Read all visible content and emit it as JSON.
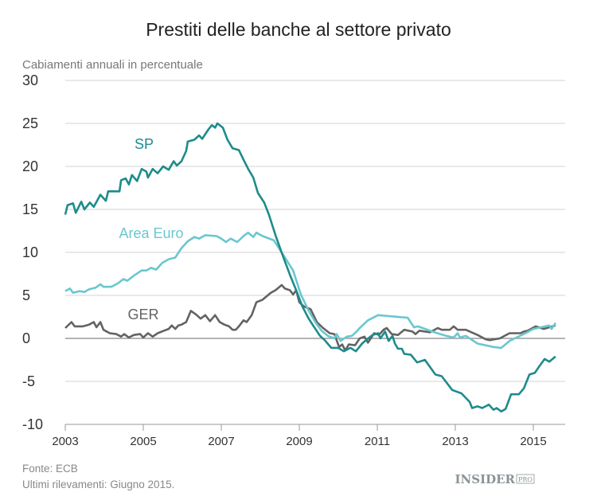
{
  "chart_data": {
    "type": "line",
    "title": "Prestiti delle banche al settore privato",
    "subtitle": "Cabiamenti annuali in percentuale",
    "xlabel": "",
    "ylabel": "",
    "xlim": [
      2003,
      2016
    ],
    "ylim": [
      -10,
      30
    ],
    "yticks": [
      "30",
      "25",
      "20",
      "15",
      "10",
      "5",
      "0",
      "-5",
      "-10"
    ],
    "xticks": [
      "2003",
      "2005",
      "2007",
      "2009",
      "2011",
      "2013",
      "2015"
    ],
    "grid": "horizontal",
    "legend": "inline labels",
    "series": [
      {
        "name": "SP",
        "color": "#1e8b8c",
        "points": [
          [
            2003.0,
            14.4
          ],
          [
            2003.06,
            15.5
          ],
          [
            2003.2,
            15.7
          ],
          [
            2003.27,
            14.6
          ],
          [
            2003.41,
            15.9
          ],
          [
            2003.49,
            15.0
          ],
          [
            2003.63,
            15.8
          ],
          [
            2003.73,
            15.3
          ],
          [
            2003.9,
            16.7
          ],
          [
            2004.04,
            16.0
          ],
          [
            2004.1,
            17.1
          ],
          [
            2004.39,
            17.1
          ],
          [
            2004.43,
            18.4
          ],
          [
            2004.55,
            18.6
          ],
          [
            2004.63,
            17.9
          ],
          [
            2004.71,
            19.0
          ],
          [
            2004.84,
            18.3
          ],
          [
            2004.96,
            19.7
          ],
          [
            2005.08,
            19.4
          ],
          [
            2005.12,
            18.7
          ],
          [
            2005.24,
            19.7
          ],
          [
            2005.37,
            19.2
          ],
          [
            2005.51,
            20.0
          ],
          [
            2005.65,
            19.6
          ],
          [
            2005.78,
            20.6
          ],
          [
            2005.86,
            20.1
          ],
          [
            2005.98,
            20.6
          ],
          [
            2006.1,
            21.8
          ],
          [
            2006.14,
            22.9
          ],
          [
            2006.31,
            23.1
          ],
          [
            2006.43,
            23.6
          ],
          [
            2006.51,
            23.2
          ],
          [
            2006.67,
            24.3
          ],
          [
            2006.76,
            24.8
          ],
          [
            2006.84,
            24.5
          ],
          [
            2006.9,
            25.0
          ],
          [
            2007.04,
            24.5
          ],
          [
            2007.16,
            23.1
          ],
          [
            2007.29,
            22.1
          ],
          [
            2007.45,
            21.9
          ],
          [
            2007.57,
            20.8
          ],
          [
            2007.69,
            19.7
          ],
          [
            2007.82,
            18.7
          ],
          [
            2007.94,
            16.9
          ],
          [
            2008.1,
            15.8
          ],
          [
            2008.22,
            14.4
          ],
          [
            2008.39,
            12.0
          ],
          [
            2008.57,
            9.7
          ],
          [
            2008.76,
            7.4
          ],
          [
            2008.92,
            5.6
          ],
          [
            2009.08,
            3.7
          ],
          [
            2009.24,
            2.3
          ],
          [
            2009.37,
            1.4
          ],
          [
            2009.53,
            0.3
          ],
          [
            2009.65,
            -0.2
          ],
          [
            2009.82,
            -1.1
          ],
          [
            2010.0,
            -1.1
          ],
          [
            2010.14,
            -1.5
          ],
          [
            2010.31,
            -1.1
          ],
          [
            2010.45,
            -1.5
          ],
          [
            2010.61,
            -0.6
          ],
          [
            2010.71,
            -0.2
          ],
          [
            2010.88,
            0.4
          ],
          [
            2011.02,
            0.6
          ],
          [
            2011.08,
            0.0
          ],
          [
            2011.2,
            0.8
          ],
          [
            2011.29,
            -0.3
          ],
          [
            2011.39,
            0.3
          ],
          [
            2011.45,
            -0.6
          ],
          [
            2011.53,
            -1.2
          ],
          [
            2011.63,
            -1.2
          ],
          [
            2011.69,
            -1.8
          ],
          [
            2011.86,
            -1.9
          ],
          [
            2012.02,
            -2.8
          ],
          [
            2012.22,
            -2.5
          ],
          [
            2012.49,
            -4.2
          ],
          [
            2012.65,
            -4.4
          ],
          [
            2012.92,
            -6.0
          ],
          [
            2013.16,
            -6.4
          ],
          [
            2013.37,
            -7.4
          ],
          [
            2013.43,
            -8.1
          ],
          [
            2013.57,
            -7.9
          ],
          [
            2013.69,
            -8.1
          ],
          [
            2013.86,
            -7.7
          ],
          [
            2013.98,
            -8.3
          ],
          [
            2014.06,
            -8.1
          ],
          [
            2014.18,
            -8.5
          ],
          [
            2014.29,
            -8.2
          ],
          [
            2014.43,
            -6.5
          ],
          [
            2014.63,
            -6.5
          ],
          [
            2014.76,
            -5.8
          ],
          [
            2014.9,
            -4.2
          ],
          [
            2015.04,
            -4.0
          ],
          [
            2015.16,
            -3.2
          ],
          [
            2015.29,
            -2.4
          ],
          [
            2015.41,
            -2.7
          ],
          [
            2015.57,
            -2.1
          ]
        ]
      },
      {
        "name": "Area Euro",
        "color": "#6ac7cf",
        "points": [
          [
            2003.0,
            5.5
          ],
          [
            2003.12,
            5.8
          ],
          [
            2003.2,
            5.3
          ],
          [
            2003.37,
            5.5
          ],
          [
            2003.49,
            5.4
          ],
          [
            2003.61,
            5.7
          ],
          [
            2003.78,
            5.9
          ],
          [
            2003.9,
            6.3
          ],
          [
            2003.98,
            6.0
          ],
          [
            2004.18,
            6.0
          ],
          [
            2004.35,
            6.4
          ],
          [
            2004.49,
            6.9
          ],
          [
            2004.59,
            6.7
          ],
          [
            2004.76,
            7.3
          ],
          [
            2004.96,
            7.9
          ],
          [
            2005.08,
            7.9
          ],
          [
            2005.2,
            8.2
          ],
          [
            2005.33,
            8.0
          ],
          [
            2005.49,
            8.8
          ],
          [
            2005.65,
            9.2
          ],
          [
            2005.82,
            9.4
          ],
          [
            2005.98,
            10.5
          ],
          [
            2006.14,
            11.3
          ],
          [
            2006.31,
            11.8
          ],
          [
            2006.43,
            11.6
          ],
          [
            2006.59,
            12.0
          ],
          [
            2006.88,
            11.9
          ],
          [
            2007.0,
            11.6
          ],
          [
            2007.12,
            11.2
          ],
          [
            2007.24,
            11.6
          ],
          [
            2007.41,
            11.2
          ],
          [
            2007.57,
            11.9
          ],
          [
            2007.69,
            12.3
          ],
          [
            2007.82,
            11.8
          ],
          [
            2007.9,
            12.3
          ],
          [
            2008.06,
            11.9
          ],
          [
            2008.35,
            11.4
          ],
          [
            2008.59,
            9.7
          ],
          [
            2008.84,
            7.9
          ],
          [
            2009.04,
            5.1
          ],
          [
            2009.24,
            3.2
          ],
          [
            2009.41,
            1.9
          ],
          [
            2009.57,
            0.9
          ],
          [
            2009.73,
            0.3
          ],
          [
            2009.9,
            0.0
          ],
          [
            2009.96,
            0.5
          ],
          [
            2010.06,
            -0.3
          ],
          [
            2010.22,
            0.2
          ],
          [
            2010.35,
            0.3
          ],
          [
            2010.47,
            0.8
          ],
          [
            2010.55,
            1.2
          ],
          [
            2010.76,
            2.1
          ],
          [
            2011.02,
            2.7
          ],
          [
            2011.78,
            2.4
          ],
          [
            2011.94,
            1.3
          ],
          [
            2012.04,
            1.4
          ],
          [
            2012.47,
            0.7
          ],
          [
            2012.76,
            0.3
          ],
          [
            2012.96,
            0.1
          ],
          [
            2013.06,
            0.6
          ],
          [
            2013.12,
            0.1
          ],
          [
            2013.27,
            0.3
          ],
          [
            2013.57,
            -0.6
          ],
          [
            2013.98,
            -1.0
          ],
          [
            2014.18,
            -1.1
          ],
          [
            2014.39,
            -0.3
          ],
          [
            2014.8,
            0.6
          ],
          [
            2015.0,
            1.1
          ],
          [
            2015.41,
            1.5
          ],
          [
            2015.47,
            1.1
          ],
          [
            2015.57,
            1.8
          ]
        ]
      },
      {
        "name": "GER",
        "color": "#636363",
        "points": [
          [
            2003.0,
            1.2
          ],
          [
            2003.16,
            1.9
          ],
          [
            2003.24,
            1.4
          ],
          [
            2003.45,
            1.4
          ],
          [
            2003.61,
            1.6
          ],
          [
            2003.73,
            1.9
          ],
          [
            2003.8,
            1.3
          ],
          [
            2003.9,
            1.9
          ],
          [
            2003.98,
            1.0
          ],
          [
            2004.14,
            0.6
          ],
          [
            2004.31,
            0.5
          ],
          [
            2004.43,
            0.2
          ],
          [
            2004.51,
            0.5
          ],
          [
            2004.63,
            0.1
          ],
          [
            2004.76,
            0.4
          ],
          [
            2004.92,
            0.5
          ],
          [
            2005.0,
            0.1
          ],
          [
            2005.12,
            0.6
          ],
          [
            2005.24,
            0.2
          ],
          [
            2005.37,
            0.6
          ],
          [
            2005.53,
            0.9
          ],
          [
            2005.65,
            1.1
          ],
          [
            2005.73,
            1.5
          ],
          [
            2005.82,
            1.1
          ],
          [
            2005.9,
            1.5
          ],
          [
            2005.98,
            1.6
          ],
          [
            2006.1,
            1.9
          ],
          [
            2006.22,
            3.2
          ],
          [
            2006.35,
            2.8
          ],
          [
            2006.47,
            2.3
          ],
          [
            2006.59,
            2.7
          ],
          [
            2006.71,
            2.0
          ],
          [
            2006.84,
            2.7
          ],
          [
            2006.96,
            1.9
          ],
          [
            2007.08,
            1.6
          ],
          [
            2007.2,
            1.4
          ],
          [
            2007.29,
            1.0
          ],
          [
            2007.37,
            1.0
          ],
          [
            2007.45,
            1.4
          ],
          [
            2007.57,
            2.1
          ],
          [
            2007.65,
            1.9
          ],
          [
            2007.78,
            2.7
          ],
          [
            2007.9,
            4.2
          ],
          [
            2008.06,
            4.5
          ],
          [
            2008.27,
            5.3
          ],
          [
            2008.39,
            5.6
          ],
          [
            2008.55,
            6.2
          ],
          [
            2008.63,
            5.8
          ],
          [
            2008.76,
            5.6
          ],
          [
            2008.84,
            5.1
          ],
          [
            2008.92,
            5.6
          ],
          [
            2009.0,
            4.2
          ],
          [
            2009.12,
            3.7
          ],
          [
            2009.29,
            3.4
          ],
          [
            2009.45,
            1.9
          ],
          [
            2009.61,
            1.2
          ],
          [
            2009.78,
            0.6
          ],
          [
            2009.9,
            0.5
          ],
          [
            2010.02,
            -1.0
          ],
          [
            2010.1,
            -0.7
          ],
          [
            2010.18,
            -1.4
          ],
          [
            2010.27,
            -0.7
          ],
          [
            2010.43,
            -0.8
          ],
          [
            2010.55,
            0.0
          ],
          [
            2010.67,
            0.2
          ],
          [
            2010.76,
            -0.5
          ],
          [
            2010.92,
            0.6
          ],
          [
            2011.04,
            0.4
          ],
          [
            2011.16,
            1.0
          ],
          [
            2011.24,
            1.2
          ],
          [
            2011.37,
            0.5
          ],
          [
            2011.53,
            0.4
          ],
          [
            2011.69,
            1.0
          ],
          [
            2011.9,
            0.8
          ],
          [
            2011.98,
            0.5
          ],
          [
            2012.08,
            0.9
          ],
          [
            2012.35,
            0.7
          ],
          [
            2012.55,
            1.2
          ],
          [
            2012.65,
            1.0
          ],
          [
            2012.86,
            1.0
          ],
          [
            2012.96,
            1.4
          ],
          [
            2013.06,
            1.0
          ],
          [
            2013.27,
            1.0
          ],
          [
            2013.57,
            0.4
          ],
          [
            2013.78,
            -0.1
          ],
          [
            2013.88,
            -0.2
          ],
          [
            2014.14,
            0.0
          ],
          [
            2014.39,
            0.6
          ],
          [
            2014.67,
            0.6
          ],
          [
            2014.76,
            0.8
          ],
          [
            2014.86,
            0.9
          ],
          [
            2015.06,
            1.4
          ],
          [
            2015.27,
            1.1
          ],
          [
            2015.57,
            1.5
          ]
        ]
      }
    ]
  },
  "footer": {
    "source": "Fonte: ECB",
    "note": "Ultimi rilevamenti: Giugno 2015."
  },
  "logo": {
    "text": "INSIDER",
    "suffix": "PRO"
  }
}
